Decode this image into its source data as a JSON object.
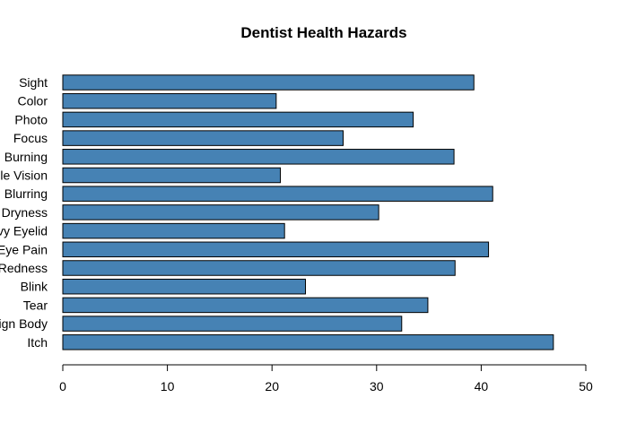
{
  "chart_data": {
    "type": "bar",
    "orientation": "horizontal",
    "title": "Dentist Health Hazards",
    "xlabel": "",
    "ylabel": "",
    "categories": [
      "Sight",
      "Color",
      "Photo",
      "Focus",
      "Burning",
      "Double Vision",
      "Blurring",
      "Dryness",
      "Heavy Eyelid",
      "Eye Pain",
      "Redness",
      "Blink",
      "Tear",
      "Foreign Body",
      "Itch"
    ],
    "category_labels_visible": [
      "Sight",
      "Color",
      "Photo",
      "Focus",
      "Burning",
      "le Vision",
      "Blurring",
      "Dryness",
      "vy Eyelid",
      "Eye Pain",
      "Redness",
      "Blink",
      "Tear",
      "ign Body",
      "Itch"
    ],
    "values": [
      39.3,
      20.4,
      33.5,
      26.8,
      37.4,
      20.8,
      41.1,
      30.2,
      21.2,
      40.7,
      37.5,
      23.2,
      34.9,
      32.4,
      46.9
    ],
    "xlim": [
      0,
      50
    ],
    "xticks": [
      0,
      10,
      20,
      30,
      40,
      50
    ],
    "grid": false,
    "legend": "none",
    "bar_color": "#4682B4",
    "bar_edge_color": "#000000"
  }
}
